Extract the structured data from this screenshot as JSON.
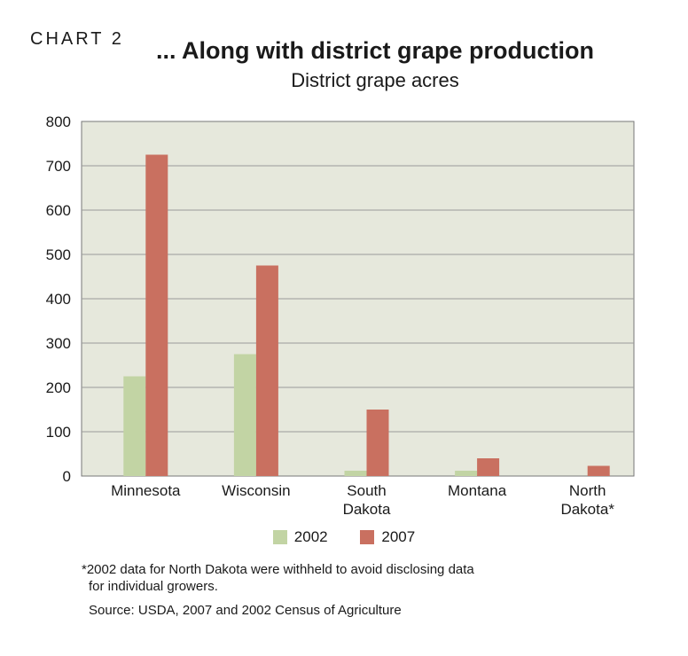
{
  "header": {
    "label": "CHART 2",
    "title": "... Along with district grape production",
    "subtitle": "District grape acres"
  },
  "chart_data": {
    "type": "bar",
    "categories": [
      [
        "Minnesota"
      ],
      [
        "Wisconsin"
      ],
      [
        "South",
        "Dakota"
      ],
      [
        "Montana"
      ],
      [
        "North",
        "Dakota*"
      ]
    ],
    "series": [
      {
        "name": "2002",
        "color": "#c2d4a4",
        "values": [
          225,
          275,
          12,
          12,
          null
        ]
      },
      {
        "name": "2007",
        "color": "#c97060",
        "values": [
          725,
          475,
          150,
          40,
          23
        ]
      }
    ],
    "ylim": [
      0,
      800
    ],
    "yticks": [
      0,
      100,
      200,
      300,
      400,
      500,
      600,
      700,
      800
    ],
    "grid": true,
    "plot_background": "#e6e8dc",
    "legend_position": "bottom"
  },
  "legend": {
    "items": [
      {
        "label": "2002",
        "color": "#c2d4a4"
      },
      {
        "label": "2007",
        "color": "#c97060"
      }
    ]
  },
  "footnote": {
    "line1": "*2002 data for North Dakota were withheld to avoid disclosing data",
    "line2": "for individual growers."
  },
  "source": "Source: USDA, 2007 and 2002 Census of Agriculture"
}
